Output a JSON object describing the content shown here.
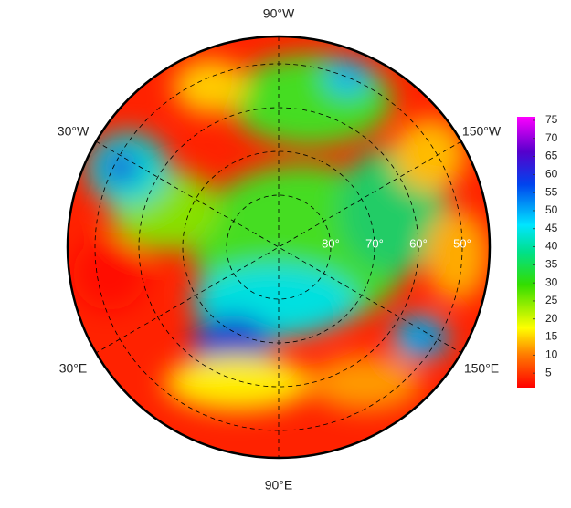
{
  "map": {
    "longitude_labels": [
      "90°W",
      "30°W",
      "150°W",
      "30°E",
      "150°E",
      "90°E"
    ],
    "latitude_labels": [
      "80°",
      "70°",
      "60°",
      "50°"
    ]
  },
  "colorbar": {
    "range": [
      1,
      76
    ],
    "ticks": [
      5,
      10,
      15,
      20,
      25,
      30,
      35,
      40,
      45,
      50,
      55,
      60,
      65,
      70,
      75
    ]
  }
}
